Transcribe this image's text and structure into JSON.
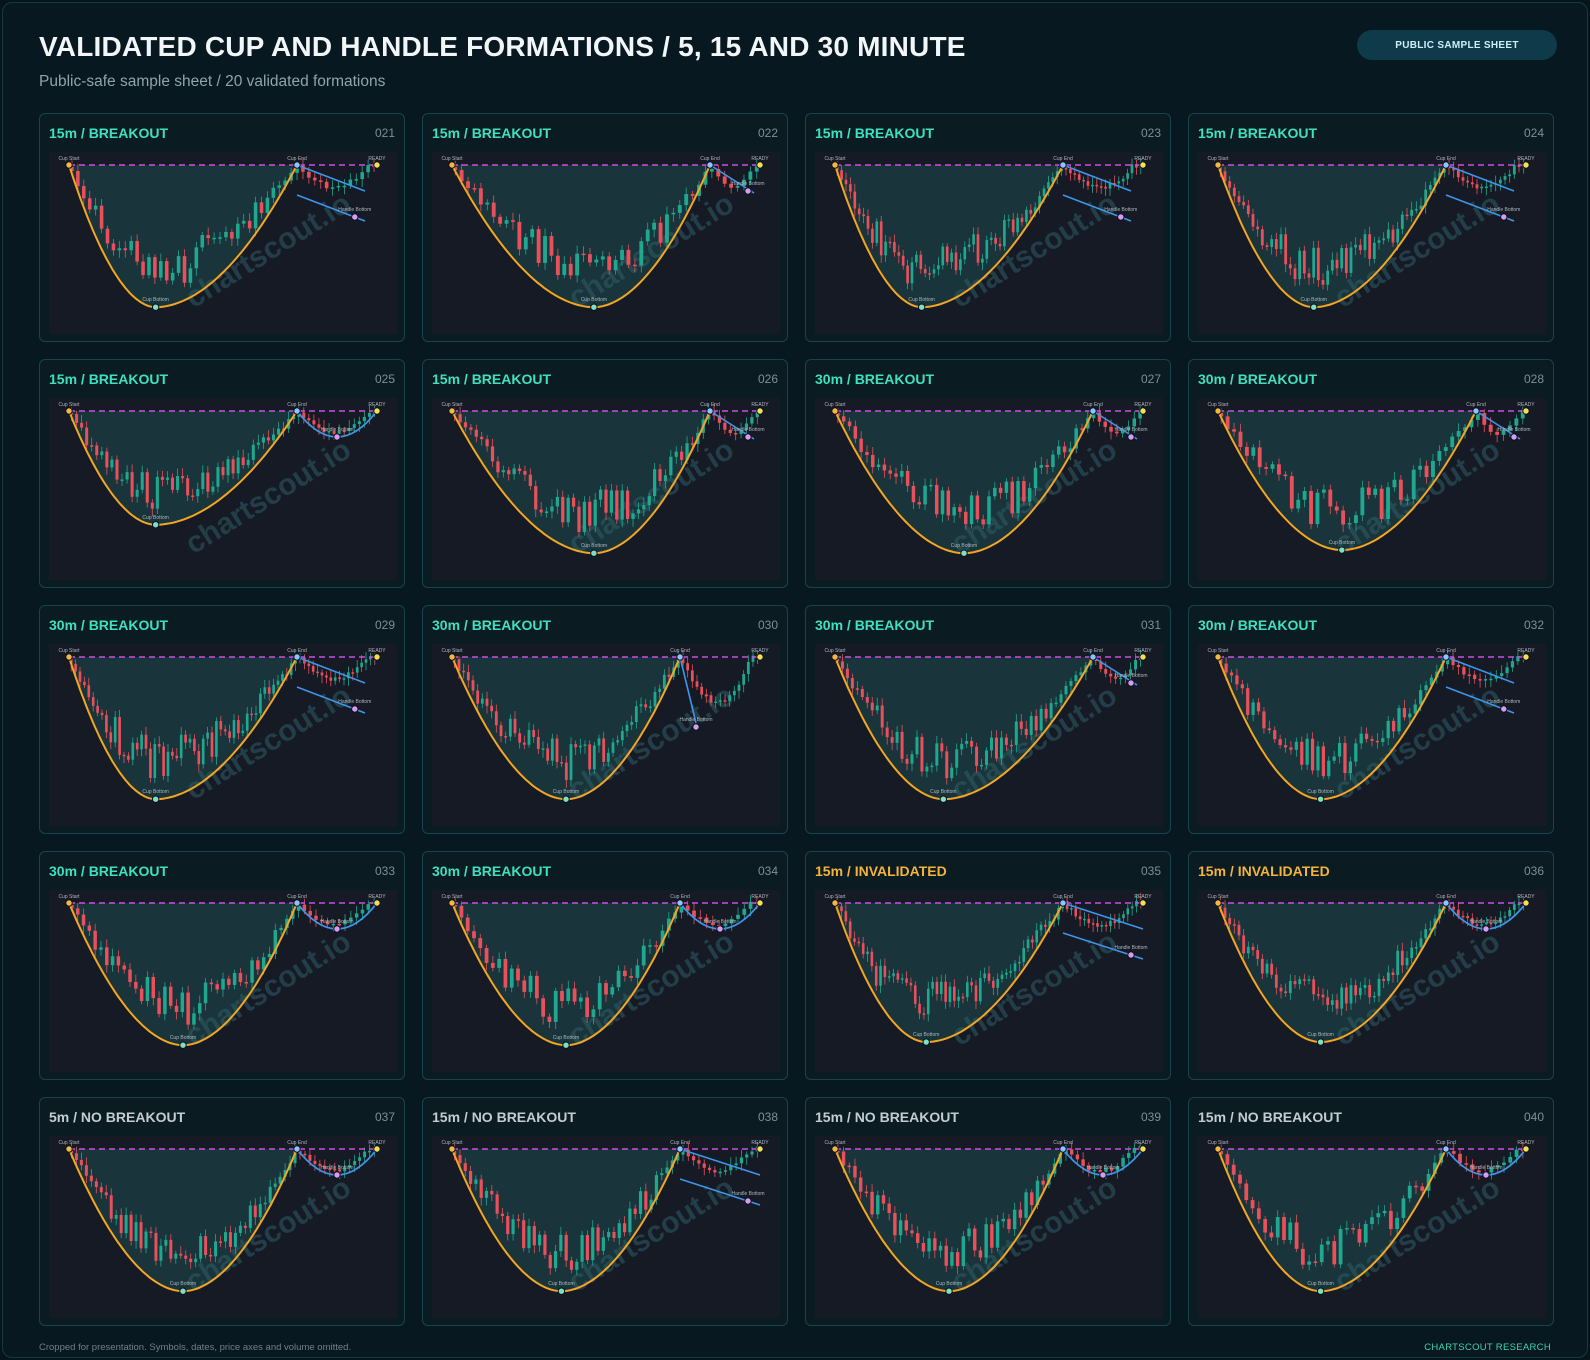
{
  "header": {
    "title": "VALIDATED CUP AND HANDLE FORMATIONS / 5, 15 AND 30 MINUTE",
    "subtitle": "Public-safe sample sheet / 20 validated formations",
    "badge": "PUBLIC SAMPLE SHEET"
  },
  "watermark": "chartscout.io",
  "marker_labels": {
    "cup_start": "Cup Start",
    "cup_end": "Cup End",
    "cup_bottom": "Cup Bottom",
    "handle_bottom": "Handle Bottom",
    "ready": "READY"
  },
  "colors": {
    "breakout": "#3fe0c0",
    "invalidated": "#f3b33c",
    "no_breakout": "#c3ccd1",
    "bull_candle": "#1fa88f",
    "bear_candle": "#e8505b",
    "cup_curve": "#f4a623",
    "resistance": "#c850e6",
    "handle_lines": "#3d95ec",
    "start_marker": "#f6b83a",
    "ready_marker": "#f5e04a",
    "end_marker": "#8fc3ff",
    "bottom_marker": "#7ee0c0",
    "handle_marker": "#d79bf0"
  },
  "chart_data": [
    {
      "type": "candlestick-pattern",
      "label": "15m / BREAKOUT",
      "status": "breakout",
      "id": "021",
      "handle": "channel",
      "cup_bottom_position": 0.38,
      "depth": 0.9,
      "noise": 0.12,
      "seed": 21
    },
    {
      "type": "candlestick-pattern",
      "label": "15m / BREAKOUT",
      "status": "breakout",
      "id": "022",
      "handle": "short",
      "cup_bottom_position": 0.55,
      "depth": 0.9,
      "noise": 0.08,
      "seed": 22
    },
    {
      "type": "candlestick-pattern",
      "label": "15m / BREAKOUT",
      "status": "breakout",
      "id": "023",
      "handle": "channel-short",
      "cup_bottom_position": 0.38,
      "depth": 0.9,
      "noise": 0.14,
      "seed": 23
    },
    {
      "type": "candlestick-pattern",
      "label": "15m / BREAKOUT",
      "status": "breakout",
      "id": "024",
      "handle": "channel-short",
      "cup_bottom_position": 0.42,
      "depth": 0.9,
      "noise": 0.12,
      "seed": 24
    },
    {
      "type": "candlestick-pattern",
      "label": "15m / BREAKOUT",
      "status": "breakout",
      "id": "025",
      "handle": "rounded",
      "cup_bottom_position": 0.38,
      "depth": 0.72,
      "noise": 0.1,
      "seed": 25
    },
    {
      "type": "candlestick-pattern",
      "label": "15m / BREAKOUT",
      "status": "breakout",
      "id": "026",
      "handle": "short",
      "cup_bottom_position": 0.55,
      "depth": 0.9,
      "noise": 0.12,
      "seed": 26
    },
    {
      "type": "candlestick-pattern",
      "label": "30m / BREAKOUT",
      "status": "breakout",
      "id": "027",
      "handle": "short",
      "cup_bottom_position": 0.5,
      "depth": 0.9,
      "noise": 0.08,
      "seed": 27
    },
    {
      "type": "candlestick-pattern",
      "label": "30m / BREAKOUT",
      "status": "breakout",
      "id": "028",
      "handle": "short",
      "cup_bottom_position": 0.48,
      "depth": 0.88,
      "noise": 0.12,
      "seed": 28
    },
    {
      "type": "candlestick-pattern",
      "label": "30m / BREAKOUT",
      "status": "breakout",
      "id": "029",
      "handle": "channel",
      "cup_bottom_position": 0.38,
      "depth": 0.9,
      "noise": 0.12,
      "seed": 29
    },
    {
      "type": "candlestick-pattern",
      "label": "30m / BREAKOUT",
      "status": "breakout",
      "id": "030",
      "handle": "deep",
      "cup_bottom_position": 0.5,
      "depth": 0.9,
      "noise": 0.14,
      "seed": 30
    },
    {
      "type": "candlestick-pattern",
      "label": "30m / BREAKOUT",
      "status": "breakout",
      "id": "031",
      "handle": "short",
      "cup_bottom_position": 0.42,
      "depth": 0.9,
      "noise": 0.12,
      "seed": 31
    },
    {
      "type": "candlestick-pattern",
      "label": "30m / BREAKOUT",
      "status": "breakout",
      "id": "032",
      "handle": "channel",
      "cup_bottom_position": 0.45,
      "depth": 0.9,
      "noise": 0.12,
      "seed": 32
    },
    {
      "type": "candlestick-pattern",
      "label": "30m / BREAKOUT",
      "status": "breakout",
      "id": "033",
      "handle": "rounded",
      "cup_bottom_position": 0.5,
      "depth": 0.9,
      "noise": 0.08,
      "seed": 33
    },
    {
      "type": "candlestick-pattern",
      "label": "30m / BREAKOUT",
      "status": "breakout",
      "id": "034",
      "handle": "rounded",
      "cup_bottom_position": 0.5,
      "depth": 0.9,
      "noise": 0.12,
      "seed": 34
    },
    {
      "type": "candlestick-pattern",
      "label": "15m / INVALIDATED",
      "status": "invalidated",
      "id": "035",
      "handle": "channel-long",
      "cup_bottom_position": 0.4,
      "depth": 0.88,
      "noise": 0.14,
      "seed": 35
    },
    {
      "type": "candlestick-pattern",
      "label": "15m / INVALIDATED",
      "status": "invalidated",
      "id": "036",
      "handle": "rounded",
      "cup_bottom_position": 0.45,
      "depth": 0.88,
      "noise": 0.14,
      "seed": 36
    },
    {
      "type": "candlestick-pattern",
      "label": "5m / NO BREAKOUT",
      "status": "no_breakout",
      "id": "037",
      "handle": "rounded",
      "cup_bottom_position": 0.5,
      "depth": 0.9,
      "noise": 0.12,
      "seed": 37
    },
    {
      "type": "candlestick-pattern",
      "label": "15m / NO BREAKOUT",
      "status": "no_breakout",
      "id": "038",
      "handle": "channel-long",
      "cup_bottom_position": 0.48,
      "depth": 0.9,
      "noise": 0.12,
      "seed": 38
    },
    {
      "type": "candlestick-pattern",
      "label": "15m / NO BREAKOUT",
      "status": "no_breakout",
      "id": "039",
      "handle": "rounded",
      "cup_bottom_position": 0.5,
      "depth": 0.9,
      "noise": 0.14,
      "seed": 39
    },
    {
      "type": "candlestick-pattern",
      "label": "15m / NO BREAKOUT",
      "status": "no_breakout",
      "id": "040",
      "handle": "rounded",
      "cup_bottom_position": 0.45,
      "depth": 0.9,
      "noise": 0.14,
      "seed": 40
    }
  ],
  "footer": {
    "note": "Cropped for presentation. Symbols, dates, price axes and volume omitted.",
    "brand": "CHARTSCOUT RESEARCH"
  }
}
